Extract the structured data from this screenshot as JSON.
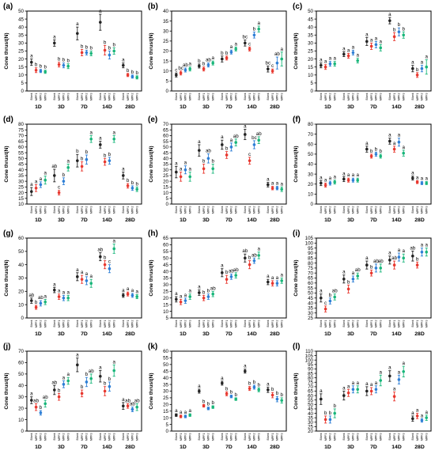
{
  "figure": {
    "group_labels": [
      "1D",
      "3D",
      "7D",
      "14D",
      "28D"
    ],
    "treatment_labels": [
      "Blank",
      "MPF1",
      "MPF2",
      "MPF3"
    ],
    "treatment_colors": [
      "#222222",
      "#e8382f",
      "#2e7fd6",
      "#18b67a"
    ],
    "y_axis_label": "Cone thrust(N)"
  },
  "chart_data": [
    {
      "panel": "(a)",
      "type": "scatter",
      "ylim": [
        0,
        50
      ],
      "yticks": [
        0,
        5,
        10,
        15,
        20,
        25,
        30,
        35,
        40,
        45,
        50
      ],
      "values": [
        [
          18,
          13,
          12.5,
          12
        ],
        [
          30,
          16.5,
          16,
          15.5
        ],
        [
          36,
          24,
          24,
          23.5
        ],
        [
          43,
          25.5,
          22.5,
          25
        ],
        [
          16,
          10,
          9,
          8.5
        ]
      ],
      "errors": [
        [
          2,
          1.5,
          1,
          1
        ],
        [
          2,
          1.5,
          1.5,
          1.5
        ],
        [
          4,
          2,
          1.5,
          1.5
        ],
        [
          5,
          3,
          2.5,
          2
        ],
        [
          1.5,
          1,
          1,
          1
        ]
      ],
      "letters": [
        [
          "a",
          "b",
          "b",
          "b"
        ],
        [
          "a",
          "b",
          "b",
          "b"
        ],
        [
          "a",
          "b",
          "b",
          "b"
        ],
        [
          "a",
          "b",
          "b",
          "b"
        ],
        [
          "a",
          "b",
          "b",
          "b"
        ]
      ]
    },
    {
      "panel": "(b)",
      "type": "scatter",
      "ylim": [
        0,
        40
      ],
      "yticks": [
        0,
        5,
        10,
        15,
        20,
        25,
        30,
        35,
        40
      ],
      "values": [
        [
          8,
          9,
          10.5,
          11
        ],
        [
          12.5,
          11,
          13,
          14
        ],
        [
          16,
          16.5,
          19.5,
          21
        ],
        [
          24,
          21,
          28,
          31
        ],
        [
          11,
          10,
          14,
          16
        ]
      ],
      "errors": [
        [
          1,
          1,
          1,
          1
        ],
        [
          1,
          1,
          1,
          1
        ],
        [
          1.5,
          1,
          1,
          1
        ],
        [
          1.5,
          1,
          1.5,
          1.5
        ],
        [
          1.5,
          1,
          3,
          3.5
        ]
      ],
      "letters": [
        [
          "c",
          "bc",
          "ab",
          "a"
        ],
        [
          "b",
          "b",
          "ab",
          "a"
        ],
        [
          "b",
          "b",
          "a",
          "a"
        ],
        [
          "bc",
          "c",
          "b",
          "a"
        ],
        [
          "bc",
          "c",
          "ab",
          "a"
        ]
      ]
    },
    {
      "panel": "(c)",
      "type": "scatter",
      "ylim": [
        0,
        50
      ],
      "yticks": [
        0,
        5,
        10,
        15,
        20,
        25,
        30,
        35,
        40,
        45,
        50
      ],
      "values": [
        [
          16,
          15,
          17,
          17
        ],
        [
          23,
          22,
          24,
          19
        ],
        [
          31,
          28,
          29,
          27
        ],
        [
          44,
          34,
          37,
          35
        ],
        [
          14,
          10,
          14,
          15
        ]
      ],
      "errors": [
        [
          1.5,
          1.5,
          1.5,
          1.5
        ],
        [
          1.5,
          1.5,
          1.5,
          1.5
        ],
        [
          2.5,
          2,
          2,
          2
        ],
        [
          2,
          2.5,
          2.5,
          2
        ],
        [
          2,
          1.5,
          2,
          4.5
        ]
      ],
      "letters": [
        [
          "a",
          "a",
          "a",
          "a"
        ],
        [
          "a",
          "a",
          "a",
          "a"
        ],
        [
          "a",
          "a",
          "a",
          "a"
        ],
        [
          "a",
          "b",
          "b",
          "b"
        ],
        [
          "a",
          "b",
          "a",
          "a"
        ]
      ]
    },
    {
      "panel": "(d)",
      "type": "scatter",
      "ylim": [
        10,
        80
      ],
      "yticks": [
        10,
        15,
        20,
        25,
        30,
        35,
        40,
        45,
        50,
        55,
        60,
        65,
        70,
        75,
        80
      ],
      "values": [
        [
          21,
          24,
          27,
          31
        ],
        [
          35,
          20,
          30,
          42
        ],
        [
          48,
          43,
          49,
          67
        ],
        [
          62,
          47,
          48,
          67
        ],
        [
          35,
          26,
          24,
          23
        ]
      ],
      "errors": [
        [
          3.5,
          3,
          2.5,
          3.5
        ],
        [
          5.5,
          2,
          3,
          3
        ],
        [
          5.5,
          4,
          4,
          3
        ],
        [
          3,
          3,
          3,
          3
        ],
        [
          3,
          2,
          2,
          2
        ]
      ],
      "letters": [
        [
          "a",
          "a",
          "a",
          "a"
        ],
        [
          "ab",
          "c",
          "b",
          "a"
        ],
        [
          "b",
          "b",
          "b",
          "a"
        ],
        [
          "a",
          "b",
          "b",
          "a"
        ],
        [
          "a",
          "b",
          "b",
          "b"
        ]
      ]
    },
    {
      "panel": "(e)",
      "type": "scatter",
      "ylim": [
        0,
        70
      ],
      "yticks": [
        0,
        5,
        10,
        15,
        20,
        25,
        30,
        35,
        40,
        45,
        50,
        55,
        60,
        65,
        70
      ],
      "values": [
        [
          28,
          24,
          30,
          24
        ],
        [
          47,
          31,
          40,
          31
        ],
        [
          52,
          43,
          50,
          54
        ],
        [
          61,
          38,
          52,
          56
        ],
        [
          17,
          14,
          14,
          13
        ]
      ],
      "errors": [
        [
          5,
          4,
          3.5,
          4
        ],
        [
          5,
          4,
          4,
          4
        ],
        [
          4,
          3,
          3.5,
          3
        ],
        [
          4.5,
          3,
          3.5,
          3
        ],
        [
          2,
          1.5,
          1.5,
          2
        ]
      ],
      "letters": [
        [
          "a",
          "a",
          "a",
          "a"
        ],
        [
          "a",
          "b",
          "ab",
          "b"
        ],
        [
          "a",
          "b",
          "a",
          "ab"
        ],
        [
          "a",
          "c",
          "bc",
          "ab"
        ],
        [
          "a",
          "a",
          "a",
          "a"
        ]
      ]
    },
    {
      "panel": "(f)",
      "type": "scatter",
      "ylim": [
        0,
        80
      ],
      "yticks": [
        0,
        10,
        20,
        30,
        40,
        50,
        60,
        70,
        80
      ],
      "values": [
        [
          21,
          19,
          21,
          22
        ],
        [
          25,
          24,
          24,
          24
        ],
        [
          55,
          48,
          50,
          48
        ],
        [
          63,
          55,
          62,
          51
        ],
        [
          26,
          22,
          21,
          21
        ]
      ],
      "errors": [
        [
          2.5,
          2,
          2,
          2
        ],
        [
          2.5,
          2,
          2,
          2
        ],
        [
          3,
          2,
          2,
          2
        ],
        [
          3,
          3,
          4,
          3
        ],
        [
          2,
          1.5,
          1.5,
          1.5
        ]
      ],
      "letters": [
        [
          "a",
          "a",
          "a",
          "a"
        ],
        [
          "a",
          "a",
          "a",
          "a"
        ],
        [
          "a",
          "b",
          "b",
          "b"
        ],
        [
          "a",
          "a",
          "a",
          "a"
        ],
        [
          "a",
          "a",
          "a",
          "a"
        ]
      ]
    },
    {
      "panel": "(g)",
      "type": "scatter",
      "ylim": [
        0,
        60
      ],
      "yticks": [
        0,
        10,
        20,
        30,
        40,
        50,
        60
      ],
      "values": [
        [
          13,
          8,
          11,
          12
        ],
        [
          21,
          16,
          15,
          15
        ],
        [
          31,
          29,
          28,
          26
        ],
        [
          46,
          40,
          37,
          52
        ],
        [
          17,
          18,
          17,
          16
        ]
      ],
      "errors": [
        [
          2,
          1.5,
          2,
          2
        ],
        [
          2,
          2,
          2,
          2
        ],
        [
          3,
          3,
          3,
          3
        ],
        [
          3,
          3,
          3,
          3.5
        ],
        [
          1.5,
          1.5,
          1.5,
          1.5
        ]
      ],
      "letters": [
        [
          "ab",
          "b",
          "ab",
          "a"
        ],
        [
          "a",
          "a",
          "a",
          "a"
        ],
        [
          "a",
          "a",
          "a",
          "a"
        ],
        [
          "ab",
          "b",
          "c",
          "a"
        ],
        [
          "a",
          "a",
          "a",
          "a"
        ]
      ]
    },
    {
      "panel": "(h)",
      "type": "scatter",
      "ylim": [
        5,
        65
      ],
      "yticks": [
        5,
        10,
        15,
        20,
        25,
        30,
        35,
        40,
        45,
        50,
        55,
        60,
        65
      ],
      "values": [
        [
          19,
          17,
          18,
          21
        ],
        [
          24,
          20,
          21,
          23
        ],
        [
          39,
          34,
          36,
          37
        ],
        [
          50,
          45,
          48,
          52
        ],
        [
          32,
          31,
          31,
          33
        ]
      ],
      "errors": [
        [
          2,
          2,
          2,
          2
        ],
        [
          2,
          2,
          2,
          2
        ],
        [
          3,
          3,
          2,
          2
        ],
        [
          3,
          3,
          2,
          2.5
        ],
        [
          2,
          2,
          2,
          2
        ]
      ],
      "letters": [
        [
          "a",
          "a",
          "a",
          "a"
        ],
        [
          "a",
          "b",
          "b",
          "ab"
        ],
        [
          "a",
          "b",
          "ab",
          "ab"
        ],
        [
          "ab",
          "b",
          "ab",
          "a"
        ],
        [
          "a",
          "a",
          "a",
          "a"
        ]
      ]
    },
    {
      "panel": "(i)",
      "type": "scatter",
      "ylim": [
        25,
        105
      ],
      "yticks": [
        25,
        30,
        35,
        40,
        45,
        50,
        55,
        60,
        65,
        70,
        75,
        80,
        85,
        90,
        95,
        100,
        105
      ],
      "values": [
        [
          45,
          34,
          42,
          46
        ],
        [
          64,
          54,
          64,
          67
        ],
        [
          78,
          70,
          75,
          75
        ],
        [
          83,
          78,
          86,
          85
        ],
        [
          87,
          78,
          91,
          91
        ]
      ],
      "errors": [
        [
          4,
          3,
          3,
          3
        ],
        [
          4,
          4,
          3,
          3
        ],
        [
          4,
          3,
          4,
          4
        ],
        [
          4,
          4,
          4,
          4
        ],
        [
          5,
          3,
          4,
          4
        ]
      ],
      "letters": [
        [
          "a",
          "c",
          "b",
          "ab"
        ],
        [
          "a",
          "b",
          "a",
          "ab"
        ],
        [
          "a",
          "b",
          "ab",
          "ab"
        ],
        [
          "a",
          "ab",
          "a",
          "a"
        ],
        [
          "ab",
          "b",
          "a",
          "a"
        ]
      ]
    },
    {
      "panel": "(j)",
      "type": "scatter",
      "ylim": [
        0,
        70
      ],
      "yticks": [
        0,
        10,
        20,
        30,
        40,
        50,
        60,
        70
      ],
      "values": [
        [
          27,
          21,
          16,
          24
        ],
        [
          36,
          30,
          41,
          44
        ],
        [
          58,
          33,
          43,
          46
        ],
        [
          48,
          35,
          39,
          53
        ],
        [
          22,
          22,
          19,
          21
        ]
      ],
      "errors": [
        [
          3,
          3,
          2,
          3
        ],
        [
          4,
          3,
          3,
          3
        ],
        [
          6,
          3,
          4,
          4
        ],
        [
          5,
          4,
          4,
          5
        ],
        [
          3,
          2,
          2,
          3
        ]
      ],
      "letters": [
        [
          "a",
          "ab",
          "b",
          "ab"
        ],
        [
          "ab",
          "b",
          "a",
          "a"
        ],
        [
          "a",
          "b",
          "b",
          "ab"
        ],
        [
          "a",
          "b",
          "b",
          "a"
        ],
        [
          "a",
          "ab",
          "ab",
          "ab"
        ]
      ]
    },
    {
      "panel": "(k)",
      "type": "scatter",
      "ylim": [
        0,
        60
      ],
      "yticks": [
        0,
        5,
        10,
        15,
        20,
        25,
        30,
        35,
        40,
        45,
        50,
        55,
        60
      ],
      "values": [
        [
          12,
          11,
          11,
          12
        ],
        [
          30,
          19,
          17,
          18
        ],
        [
          36,
          28,
          26,
          24
        ],
        [
          45,
          32,
          33,
          31
        ],
        [
          31,
          27,
          24,
          23
        ]
      ],
      "errors": [
        [
          1,
          1,
          1,
          1
        ],
        [
          1.5,
          1,
          1,
          1
        ],
        [
          1.5,
          1.5,
          1,
          1
        ],
        [
          1.5,
          1.5,
          1.5,
          1.5
        ],
        [
          2,
          2,
          2,
          2
        ]
      ],
      "letters": [
        [
          "a",
          "a",
          "a",
          "a"
        ],
        [
          "a",
          "b",
          "b",
          "b"
        ],
        [
          "a",
          "b",
          "b",
          "b"
        ],
        [
          "a",
          "b",
          "b",
          "b"
        ],
        [
          "a",
          "b",
          "b",
          "b"
        ]
      ]
    },
    {
      "panel": "(l)",
      "type": "scatter",
      "ylim": [
        20,
        110
      ],
      "yticks": [
        20,
        25,
        30,
        35,
        40,
        45,
        50,
        55,
        60,
        65,
        70,
        75,
        80,
        85,
        90,
        95,
        100,
        105,
        110
      ],
      "values": [
        [
          56,
          33,
          33,
          40
        ],
        [
          60,
          63,
          67,
          67
        ],
        [
          65,
          65,
          67,
          77
        ],
        [
          82,
          59,
          78,
          87
        ],
        [
          34,
          37,
          32,
          35
        ]
      ],
      "errors": [
        [
          6,
          4,
          4,
          5
        ],
        [
          5,
          4,
          4,
          4
        ],
        [
          5,
          4,
          4,
          6
        ],
        [
          6,
          5,
          5,
          6
        ],
        [
          3,
          3,
          2,
          3
        ]
      ],
      "letters": [
        [
          "a",
          "b",
          "b",
          "b"
        ],
        [
          "a",
          "a",
          "a",
          "a"
        ],
        [
          "a",
          "a",
          "a",
          "a"
        ],
        [
          "a",
          "a",
          "a",
          "a"
        ],
        [
          "a",
          "a",
          "a",
          "a"
        ]
      ]
    }
  ]
}
